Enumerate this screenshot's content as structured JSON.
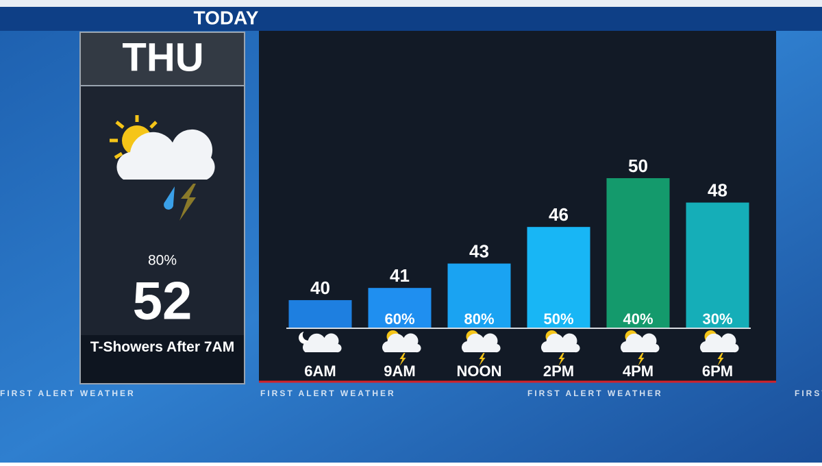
{
  "header": {
    "title": "TODAY"
  },
  "panel": {
    "day": "THU",
    "precip": 80,
    "precip_label": "80%",
    "high": 52,
    "condition": "T-Showers After 7AM"
  },
  "footer": {
    "brand": "FIRST ALERT WEATHER"
  },
  "chart_data": {
    "type": "bar",
    "categories": [
      "6AM",
      "9AM",
      "NOON",
      "2PM",
      "4PM",
      "6PM"
    ],
    "values": [
      40,
      41,
      43,
      46,
      50,
      48
    ],
    "colors": [
      "#1e7fe0",
      "#1f8ff0",
      "#1aa3f2",
      "#18b6f5",
      "#149a6c",
      "#15aeb8"
    ],
    "precip": {
      "values": [
        null,
        60,
        80,
        50,
        40,
        30
      ],
      "value_labels": [
        null,
        "60%",
        "80%",
        "50%",
        "40%",
        "30%"
      ]
    },
    "ylim": [
      37.75,
      55
    ]
  }
}
